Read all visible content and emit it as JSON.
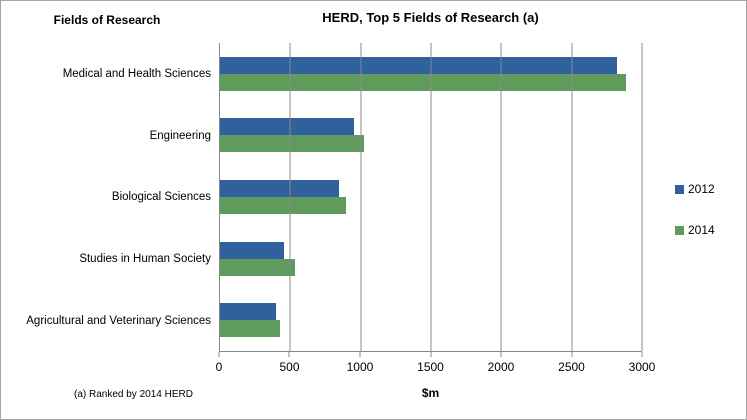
{
  "header": {
    "fields_label": "Fields of Research"
  },
  "footnote": "(a) Ranked by 2014 HERD",
  "chart_data": {
    "type": "bar",
    "orientation": "horizontal",
    "title": "HERD, Top 5 Fields of Research (a)",
    "xlabel": "$m",
    "ylabel": "Fields of Research",
    "xlim": [
      0,
      3000
    ],
    "x_ticks": [
      0,
      500,
      1000,
      1500,
      2000,
      2500,
      3000
    ],
    "grid": true,
    "legend_position": "right",
    "categories": [
      "Medical and Health Sciences",
      "Engineering",
      "Biological Sciences",
      "Studies in Human Society",
      "Agricultural and Veterinary Sciences"
    ],
    "series": [
      {
        "name": "2012",
        "color": "#31619c",
        "values": [
          2823,
          953,
          843,
          457,
          397
        ]
      },
      {
        "name": "2014",
        "color": "#609b5e",
        "values": [
          2884,
          1022,
          897,
          531,
          424
        ]
      }
    ]
  }
}
